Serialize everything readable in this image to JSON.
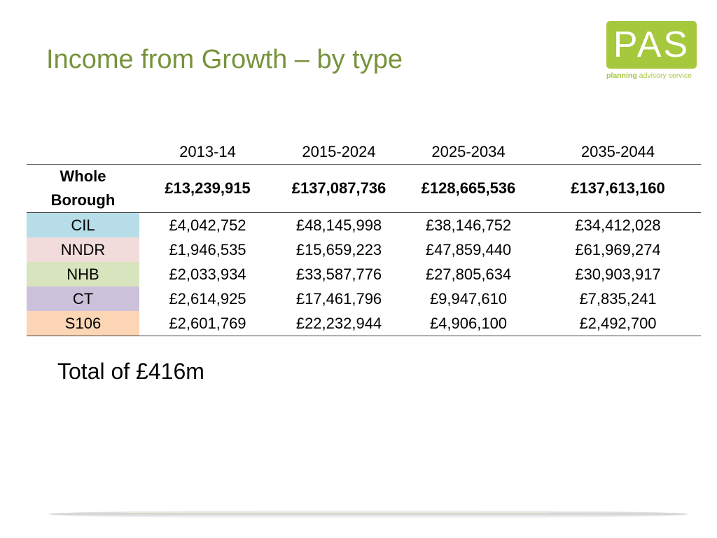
{
  "title": "Income from Growth – by type",
  "logo": {
    "mark": "PAS",
    "sub_bold": "planning",
    "sub_rest": " advisory service",
    "color": "#a6c83c"
  },
  "table": {
    "columns": [
      "",
      "2013-14",
      "2015-2024",
      "2025-2034",
      "2035-2044"
    ],
    "borough": {
      "label_line1": "Whole",
      "label_line2": "Borough",
      "values": [
        "£13,239,915",
        "£137,087,736",
        "£128,665,536",
        "£137,613,160"
      ]
    },
    "rows": [
      {
        "label": "CIL",
        "color": "#b6dde8",
        "values": [
          "£4,042,752",
          "£48,145,998",
          "£38,146,752",
          "£34,412,028"
        ]
      },
      {
        "label": "NNDR",
        "color": "#f2dcdb",
        "values": [
          "£1,946,535",
          "£15,659,223",
          "£47,859,440",
          "£61,969,274"
        ]
      },
      {
        "label": "NHB",
        "color": "#d7e4bd",
        "values": [
          "£2,033,934",
          "£33,587,776",
          "£27,805,634",
          "£30,903,917"
        ]
      },
      {
        "label": "CT",
        "color": "#ccc1da",
        "values": [
          "£2,614,925",
          "£17,461,796",
          "£9,947,610",
          "£7,835,241"
        ]
      },
      {
        "label": "S106",
        "color": "#fcd5b5",
        "values": [
          "£2,601,769",
          "£22,232,944",
          "£4,906,100",
          "£2,492,700"
        ]
      }
    ]
  },
  "total": "Total of £416m",
  "title_color": "#77933c"
}
